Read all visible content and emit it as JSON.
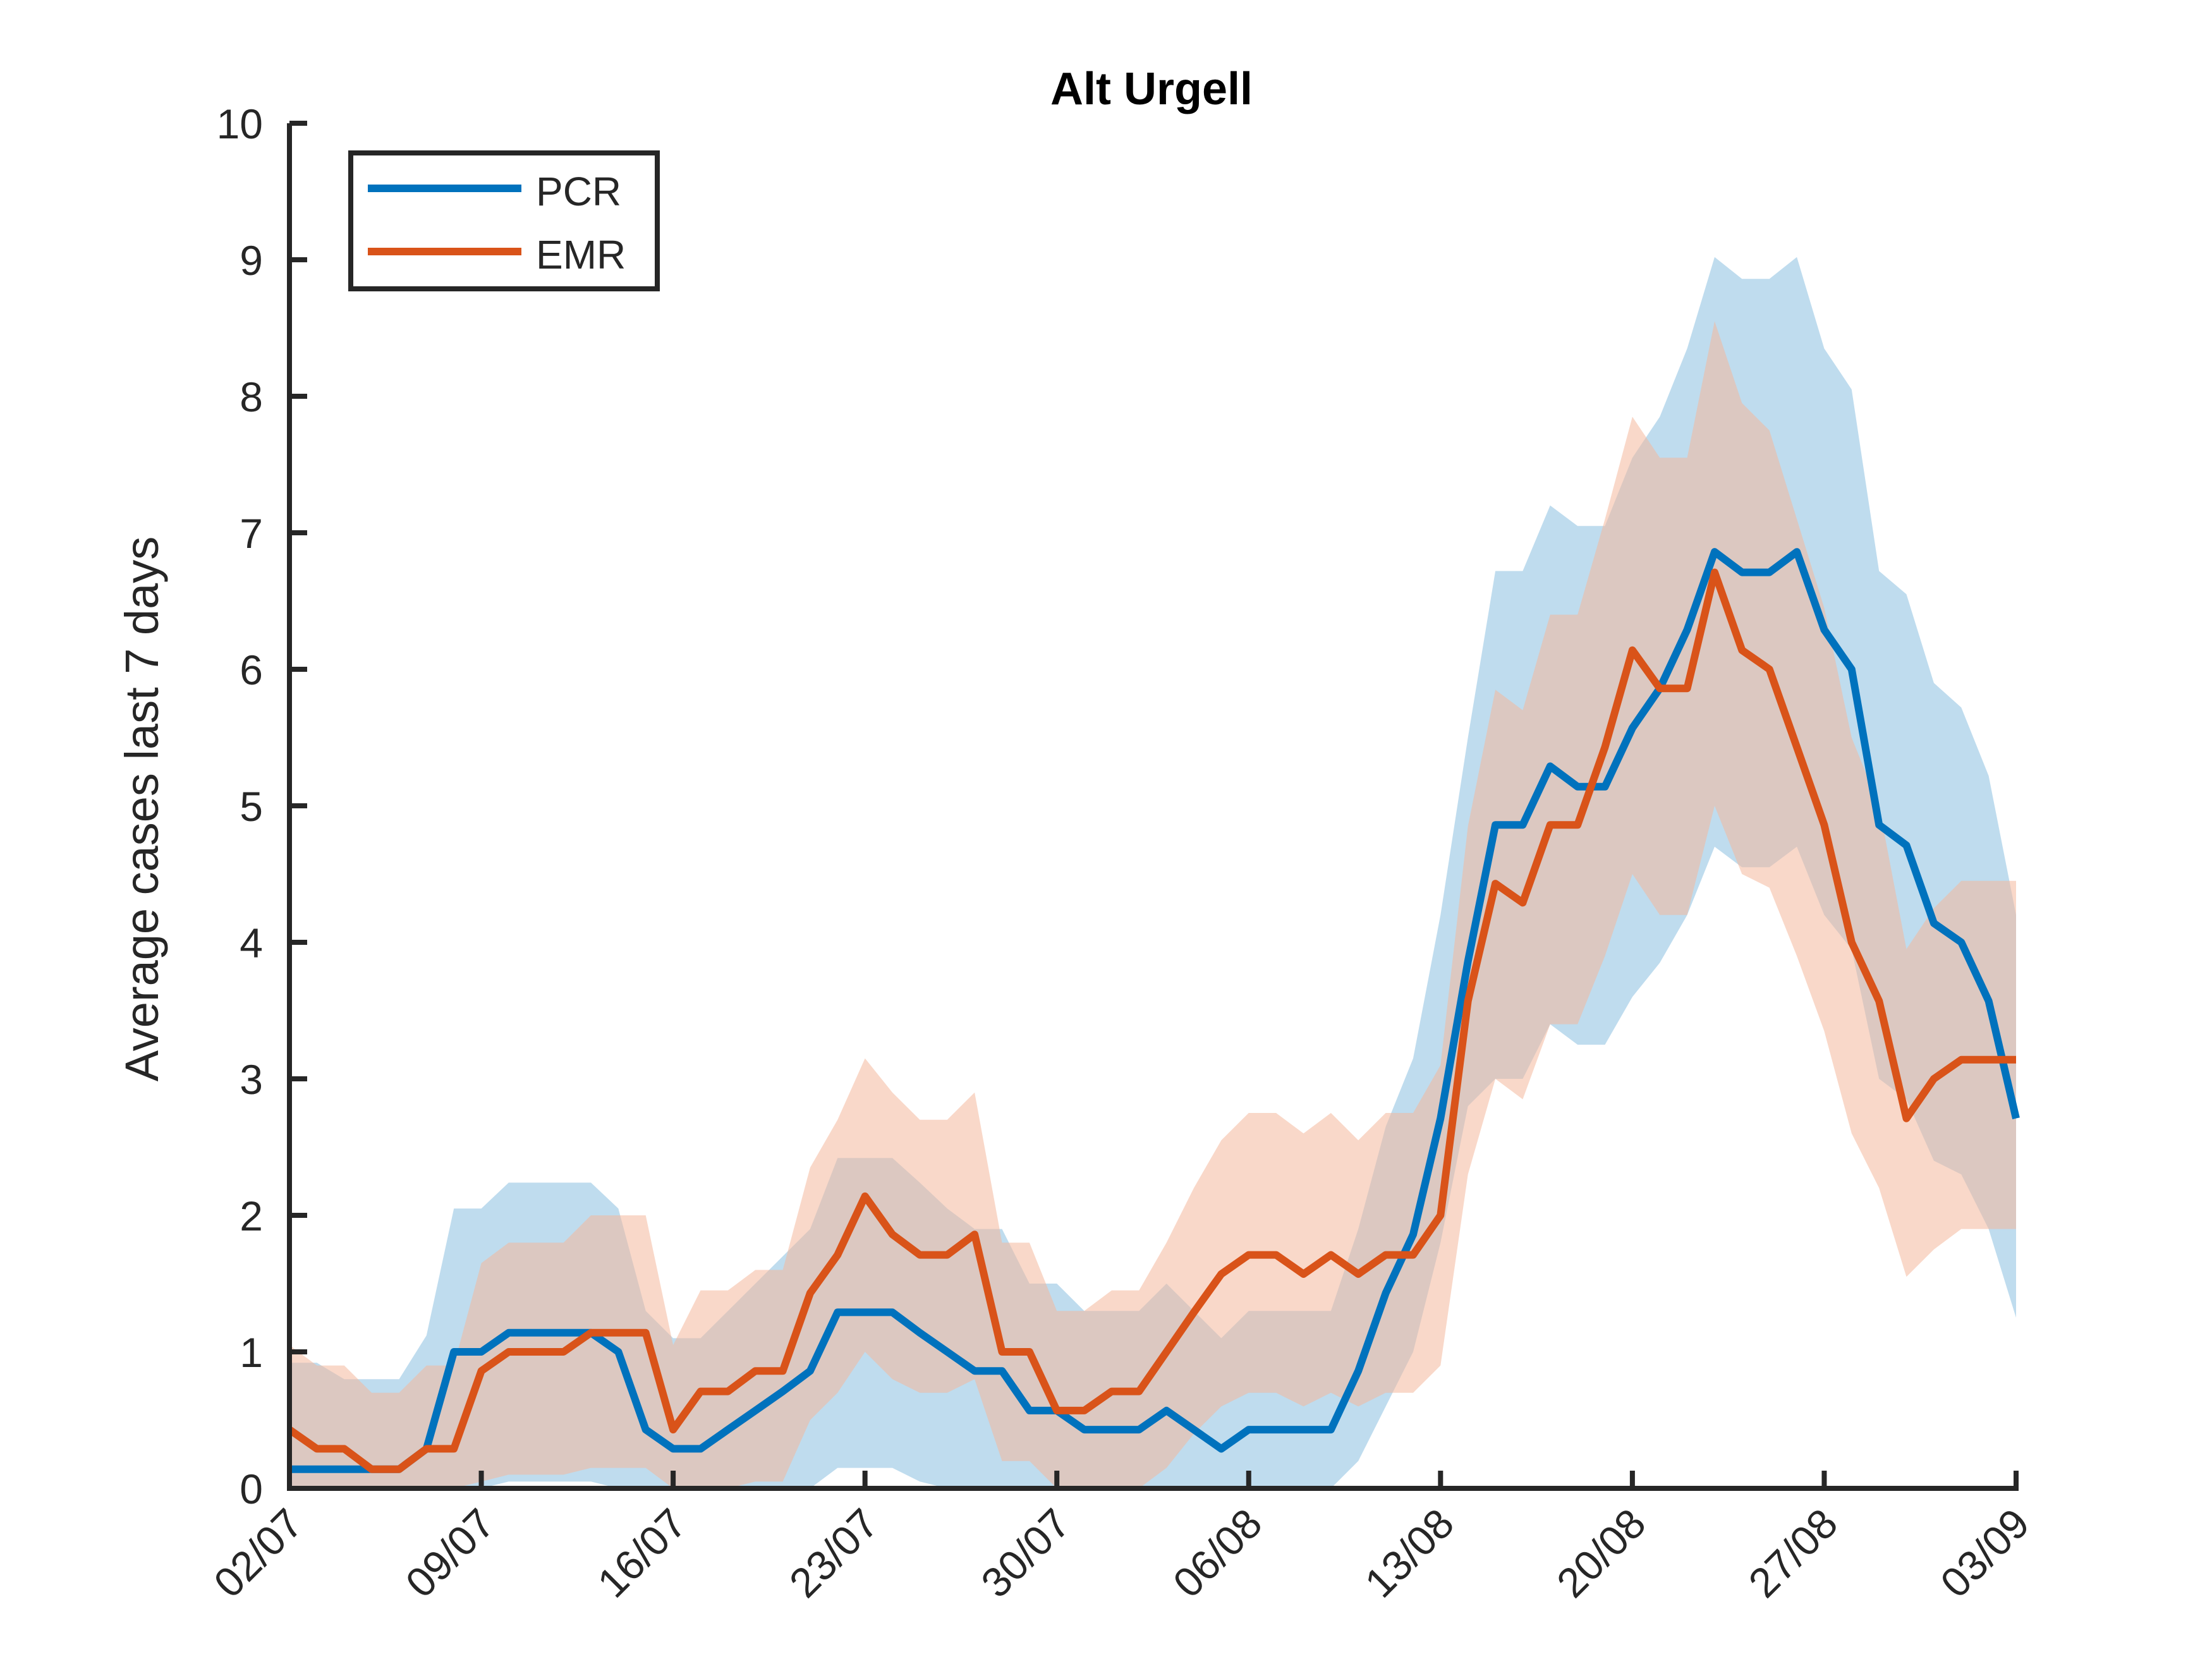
{
  "chart_data": {
    "type": "line",
    "title": "Alt Urgell",
    "ylabel": "Average cases last 7 days",
    "xlabel": "",
    "ylim": [
      0,
      10
    ],
    "yticks": [
      0,
      1,
      2,
      3,
      4,
      5,
      6,
      7,
      8,
      9,
      10
    ],
    "x_start": "02/07",
    "x_end": "03/09",
    "xticks": [
      "02/07",
      "09/07",
      "16/07",
      "23/07",
      "30/07",
      "06/08",
      "13/08",
      "20/08",
      "27/08",
      "03/09"
    ],
    "grid": false,
    "legend_position": "top-left",
    "series": [
      {
        "name": "PCR",
        "color": "#0072BD",
        "band_color": "#8ABFE0",
        "values": [
          0.14,
          0.14,
          0.14,
          0.14,
          0.14,
          0.29,
          1.0,
          1.0,
          1.14,
          1.14,
          1.14,
          1.14,
          1.0,
          0.43,
          0.29,
          0.29,
          0.43,
          0.57,
          0.71,
          0.86,
          1.29,
          1.29,
          1.29,
          1.14,
          1.0,
          0.86,
          0.86,
          0.57,
          0.57,
          0.43,
          0.43,
          0.43,
          0.57,
          0.43,
          0.29,
          0.43,
          0.43,
          0.43,
          0.43,
          0.86,
          1.43,
          1.86,
          2.71,
          3.86,
          4.86,
          4.86,
          5.29,
          5.14,
          5.14,
          5.57,
          5.86,
          6.29,
          6.86,
          6.71,
          6.71,
          6.86,
          6.29,
          6.0,
          4.86,
          4.71,
          4.14,
          4.0,
          3.57,
          2.71
        ],
        "lower": [
          0.0,
          0.0,
          0.0,
          0.0,
          0.0,
          0.0,
          0.0,
          0.0,
          0.05,
          0.05,
          0.05,
          0.05,
          0.0,
          0.0,
          0.0,
          0.0,
          0.0,
          0.0,
          0.0,
          0.0,
          0.15,
          0.15,
          0.15,
          0.05,
          0.0,
          0.0,
          0.0,
          0.0,
          0.0,
          0.0,
          0.0,
          0.0,
          0.0,
          0.0,
          0.0,
          0.0,
          0.0,
          0.0,
          0.0,
          0.2,
          0.6,
          1.0,
          1.8,
          2.8,
          3.0,
          3.0,
          3.4,
          3.25,
          3.25,
          3.6,
          3.85,
          4.2,
          4.7,
          4.55,
          4.55,
          4.7,
          4.2,
          3.95,
          3.0,
          2.85,
          2.4,
          2.3,
          1.9,
          1.25
        ],
        "upper": [
          0.92,
          0.92,
          0.8,
          0.8,
          0.8,
          1.12,
          2.05,
          2.05,
          2.24,
          2.24,
          2.24,
          2.24,
          2.05,
          1.3,
          1.1,
          1.1,
          1.3,
          1.5,
          1.7,
          1.9,
          2.42,
          2.42,
          2.42,
          2.24,
          2.05,
          1.9,
          1.9,
          1.5,
          1.5,
          1.3,
          1.3,
          1.3,
          1.5,
          1.3,
          1.1,
          1.3,
          1.3,
          1.3,
          1.3,
          1.9,
          2.65,
          3.15,
          4.2,
          5.5,
          6.72,
          6.72,
          7.2,
          7.05,
          7.05,
          7.55,
          7.85,
          8.35,
          9.02,
          8.86,
          8.86,
          9.02,
          8.35,
          8.05,
          6.72,
          6.55,
          5.9,
          5.72,
          5.22,
          4.2
        ]
      },
      {
        "name": "EMR",
        "color": "#D95319",
        "band_color": "#F4B89C",
        "values": [
          0.43,
          0.29,
          0.29,
          0.14,
          0.14,
          0.29,
          0.29,
          0.86,
          1.0,
          1.0,
          1.0,
          1.14,
          1.14,
          1.14,
          0.43,
          0.71,
          0.71,
          0.86,
          0.86,
          1.43,
          1.71,
          2.14,
          1.86,
          1.71,
          1.71,
          1.86,
          1.0,
          1.0,
          0.57,
          0.57,
          0.71,
          0.71,
          1.0,
          1.29,
          1.57,
          1.71,
          1.71,
          1.57,
          1.71,
          1.57,
          1.71,
          1.71,
          2.0,
          3.57,
          4.43,
          4.29,
          4.86,
          4.86,
          5.43,
          6.14,
          5.86,
          5.86,
          6.71,
          6.14,
          6.0,
          5.43,
          4.86,
          4.0,
          3.57,
          2.71,
          3.0,
          3.14,
          3.14,
          3.14
        ],
        "lower": [
          0.0,
          0.0,
          0.0,
          0.0,
          0.0,
          0.0,
          0.0,
          0.05,
          0.1,
          0.1,
          0.1,
          0.15,
          0.15,
          0.15,
          0.0,
          0.0,
          0.0,
          0.05,
          0.05,
          0.5,
          0.7,
          1.0,
          0.8,
          0.7,
          0.7,
          0.8,
          0.2,
          0.2,
          0.0,
          0.0,
          0.0,
          0.0,
          0.15,
          0.4,
          0.6,
          0.7,
          0.7,
          0.6,
          0.7,
          0.6,
          0.7,
          0.7,
          0.9,
          2.3,
          3.0,
          2.85,
          3.4,
          3.4,
          3.9,
          4.5,
          4.2,
          4.2,
          5.0,
          4.5,
          4.4,
          3.9,
          3.35,
          2.6,
          2.2,
          1.55,
          1.75,
          1.9,
          1.9,
          1.9
        ],
        "upper": [
          1.05,
          0.9,
          0.9,
          0.7,
          0.7,
          0.9,
          0.9,
          1.65,
          1.8,
          1.8,
          1.8,
          2.0,
          2.0,
          2.0,
          1.05,
          1.45,
          1.45,
          1.6,
          1.6,
          2.35,
          2.7,
          3.15,
          2.9,
          2.7,
          2.7,
          2.9,
          1.8,
          1.8,
          1.3,
          1.3,
          1.45,
          1.45,
          1.8,
          2.2,
          2.55,
          2.75,
          2.75,
          2.6,
          2.75,
          2.55,
          2.75,
          2.75,
          3.1,
          4.85,
          5.85,
          5.7,
          6.4,
          6.4,
          7.1,
          7.85,
          7.55,
          7.55,
          8.55,
          7.95,
          7.75,
          7.1,
          6.45,
          5.5,
          5.0,
          3.95,
          4.25,
          4.45,
          4.45,
          4.45
        ]
      }
    ]
  }
}
